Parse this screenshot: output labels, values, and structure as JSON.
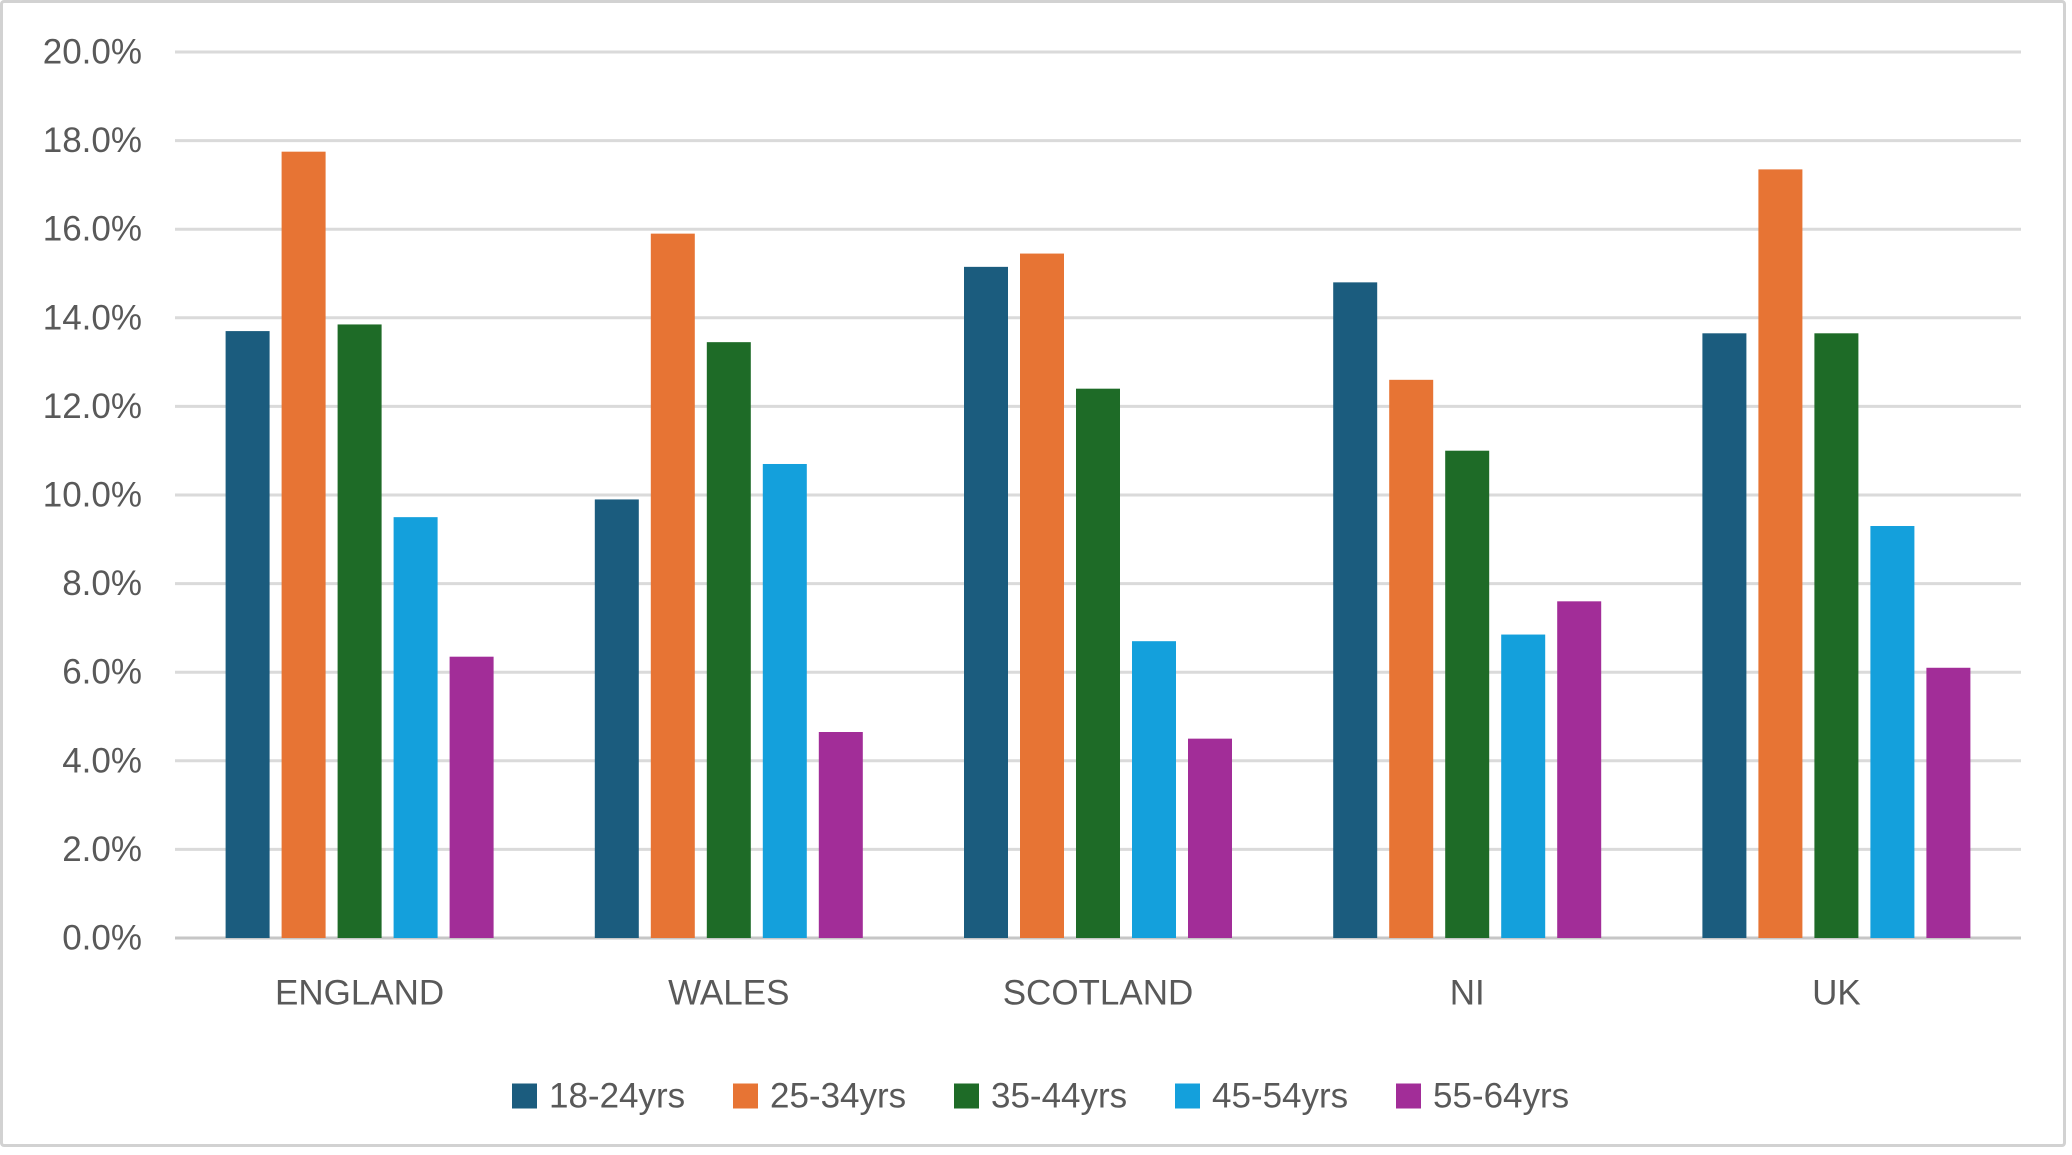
{
  "chart_data": {
    "type": "bar",
    "title": "",
    "xlabel": "",
    "ylabel": "",
    "categories": [
      "ENGLAND",
      "WALES",
      "SCOTLAND",
      "NI",
      "UK"
    ],
    "series": [
      {
        "name": "18-24yrs",
        "color": "#1b5c7e",
        "values": [
          13.7,
          9.9,
          15.15,
          14.8,
          13.65
        ]
      },
      {
        "name": "25-34yrs",
        "color": "#e77434",
        "values": [
          17.75,
          15.9,
          15.45,
          12.6,
          17.35
        ]
      },
      {
        "name": "35-44yrs",
        "color": "#1e6b27",
        "values": [
          13.85,
          13.45,
          12.4,
          11.0,
          13.65
        ]
      },
      {
        "name": "45-54yrs",
        "color": "#14a0dc",
        "values": [
          9.5,
          10.7,
          6.7,
          6.85,
          9.3
        ]
      },
      {
        "name": "55-64yrs",
        "color": "#a22d98",
        "values": [
          6.35,
          4.65,
          4.5,
          7.6,
          6.1
        ]
      }
    ],
    "y_axis": {
      "min": 0,
      "max": 20,
      "step": 2,
      "tick_labels": [
        "0.0%",
        "2.0%",
        "4.0%",
        "6.0%",
        "8.0%",
        "10.0%",
        "12.0%",
        "14.0%",
        "16.0%",
        "18.0%",
        "20.0%"
      ]
    },
    "grid": true,
    "legend_position": "bottom",
    "colors": {
      "label_text": "#595959",
      "gridline": "#dadada",
      "axis_line": "#c6c6c6",
      "background": "#ffffff",
      "frame_border": "#d2d2d2"
    }
  }
}
